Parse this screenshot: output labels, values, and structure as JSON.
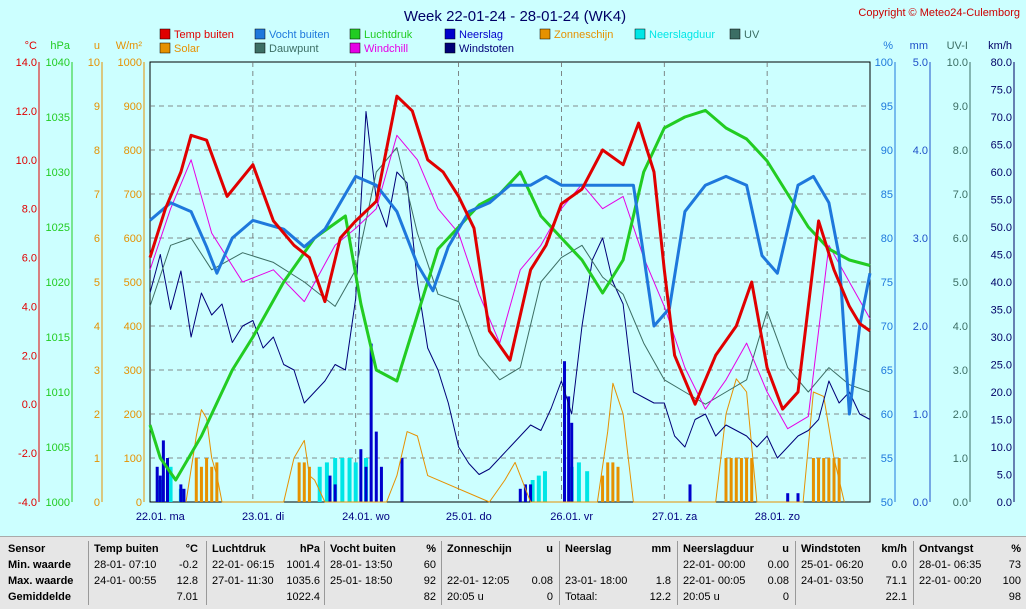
{
  "header": {
    "title": "Week 22-01-24 - 28-01-24 (WK4)",
    "copyright": "Copyright © Meteo24-Culemborg"
  },
  "legend": [
    {
      "label": "Temp buiten",
      "color": "#e00000"
    },
    {
      "label": "Vocht buiten",
      "color": "#1e78dc"
    },
    {
      "label": "Luchtdruk",
      "color": "#22cc22"
    },
    {
      "label": "Neerslag",
      "color": "#0000cc"
    },
    {
      "label": "Zonneschijn",
      "color": "#e69100"
    },
    {
      "label": "Neerslagduur",
      "color": "#00e6e6"
    },
    {
      "label": "UV",
      "color": "#3c6e64"
    },
    {
      "label": "Solar",
      "color": "#e69100"
    },
    {
      "label": "Dauwpunt",
      "color": "#3c6e64"
    },
    {
      "label": "Windchill",
      "color": "#e600e6"
    },
    {
      "label": "Windstoten",
      "color": "#000078"
    }
  ],
  "chart_data": {
    "type": "line",
    "x_labels": [
      "22.01. ma",
      "23.01. di",
      "24.01. wo",
      "25.01. do",
      "26.01. vr",
      "27.01. za",
      "28.01. zo"
    ],
    "axes": {
      "temp": {
        "unit": "°C",
        "range": [
          -4,
          14
        ],
        "ticks": [
          "14.0",
          "12.0",
          "10.0",
          "8.0",
          "6.0",
          "4.0",
          "2.0",
          "0.0",
          "-2.0",
          "-4.0"
        ]
      },
      "pressure": {
        "unit": "hPa",
        "range": [
          1000,
          1040
        ],
        "ticks": [
          "1040",
          "1035",
          "1030",
          "1025",
          "1020",
          "1015",
          "1010",
          "1005",
          "1000"
        ]
      },
      "sun_hours": {
        "unit": "u",
        "range": [
          0,
          10
        ],
        "ticks": [
          "10",
          "9",
          "8",
          "7",
          "6",
          "5",
          "4",
          "3",
          "2",
          "1",
          "0"
        ]
      },
      "solar": {
        "unit": "W/m²",
        "range": [
          0,
          1000
        ],
        "ticks": [
          "1000",
          "900",
          "800",
          "700",
          "600",
          "500",
          "400",
          "300",
          "200",
          "100",
          "0"
        ]
      },
      "humidity": {
        "unit": "%",
        "range": [
          50,
          100
        ],
        "ticks": [
          "100",
          "95",
          "90",
          "85",
          "80",
          "75",
          "70",
          "65",
          "60",
          "55",
          "50"
        ]
      },
      "rain": {
        "unit": "mm",
        "range": [
          0,
          5
        ],
        "ticks": [
          "5.0",
          "4.0",
          "3.0",
          "2.0",
          "1.0",
          "0.0"
        ]
      },
      "uv": {
        "unit": "UV-I",
        "range": [
          0,
          10
        ],
        "ticks": [
          "10.0",
          "9.0",
          "8.0",
          "7.0",
          "6.0",
          "5.0",
          "4.0",
          "3.0",
          "2.0",
          "1.0",
          "0.0"
        ]
      },
      "wind": {
        "unit": "km/h",
        "range": [
          0,
          80
        ],
        "ticks": [
          "80.0",
          "75.0",
          "70.0",
          "65.0",
          "60.0",
          "55.0",
          "50.0",
          "45.0",
          "40.0",
          "35.0",
          "30.0",
          "25.0",
          "20.0",
          "15.0",
          "10.0",
          "5.0",
          "0.0"
        ]
      }
    },
    "series": [
      {
        "name": "Temp buiten",
        "axis": "temp",
        "x": [
          0,
          0.15,
          0.3,
          0.4,
          0.55,
          0.75,
          1.0,
          1.2,
          1.4,
          1.55,
          1.7,
          1.85,
          2.0,
          2.2,
          2.4,
          2.55,
          2.7,
          2.85,
          3.0,
          3.15,
          3.3,
          3.5,
          3.7,
          3.85,
          4.0,
          4.2,
          4.4,
          4.6,
          4.75,
          4.9,
          5.0,
          5.1,
          5.3,
          5.5,
          5.7,
          5.85,
          6.0,
          6.15,
          6.3,
          6.5,
          6.65,
          6.8,
          6.9,
          7.0
        ],
        "y": [
          6.0,
          8.0,
          9.5,
          11.0,
          10.8,
          8.5,
          9.8,
          7.5,
          6.5,
          6.0,
          4.2,
          6.8,
          7.5,
          8.3,
          12.6,
          12.0,
          10.0,
          9.5,
          8.5,
          7.2,
          3.0,
          1.8,
          5.5,
          6.5,
          8.2,
          8.8,
          10.4,
          9.8,
          11.5,
          9.5,
          5.5,
          2.0,
          0.0,
          2.0,
          3.2,
          5.0,
          1.5,
          -0.2,
          0.5,
          7.5,
          5.5,
          4.0,
          3.3,
          3.0
        ]
      },
      {
        "name": "Dauwpunt",
        "axis": "temp",
        "x": [
          0,
          0.2,
          0.4,
          0.6,
          0.9,
          1.2,
          1.5,
          1.8,
          2.0,
          2.2,
          2.4,
          2.6,
          2.8,
          3.0,
          3.2,
          3.4,
          3.6,
          3.8,
          4.0,
          4.2,
          4.4,
          4.6,
          4.8,
          5.0,
          5.2,
          5.4,
          5.6,
          5.8,
          6.0,
          6.2,
          6.4,
          6.6,
          6.8,
          7.0
        ],
        "y": [
          4.0,
          6.5,
          6.8,
          5.5,
          6.2,
          5.8,
          5.0,
          4.0,
          5.5,
          9.5,
          10.5,
          7.0,
          4.5,
          4.2,
          2.0,
          1.0,
          1.5,
          5.0,
          6.0,
          6.5,
          5.2,
          4.5,
          2.5,
          1.0,
          0.5,
          0.0,
          0.5,
          1.0,
          3.8,
          1.5,
          0.5,
          1.5,
          0.8,
          0.5
        ]
      },
      {
        "name": "Windchill",
        "axis": "temp",
        "x": [
          0,
          0.2,
          0.4,
          0.6,
          0.9,
          1.2,
          1.5,
          1.8,
          2.0,
          2.2,
          2.4,
          2.6,
          2.8,
          3.0,
          3.2,
          3.4,
          3.6,
          3.8,
          4.0,
          4.2,
          4.4,
          4.6,
          4.8,
          5.0,
          5.2,
          5.4,
          5.6,
          5.8,
          6.0,
          6.2,
          6.4,
          6.6,
          6.8,
          7.0
        ],
        "y": [
          5.5,
          8.0,
          10.0,
          7.0,
          5.0,
          5.5,
          4.2,
          6.5,
          7.2,
          8.0,
          11.0,
          10.0,
          8.0,
          7.0,
          4.5,
          2.5,
          5.5,
          6.5,
          8.0,
          9.0,
          8.0,
          8.5,
          6.0,
          4.0,
          1.5,
          -0.2,
          1.0,
          2.5,
          0.5,
          -1.0,
          -0.5,
          6.5,
          5.0,
          3.5
        ]
      },
      {
        "name": "Luchtdruk",
        "axis": "pressure",
        "x": [
          0,
          0.1,
          0.25,
          0.5,
          0.8,
          1.0,
          1.3,
          1.6,
          1.9,
          2.05,
          2.2,
          2.4,
          2.6,
          2.8,
          3.0,
          3.2,
          3.4,
          3.6,
          3.8,
          4.0,
          4.2,
          4.4,
          4.6,
          4.8,
          5.0,
          5.2,
          5.4,
          5.6,
          5.8,
          6.0,
          6.2,
          6.4,
          6.6,
          6.8,
          7.0
        ],
        "y": [
          1007,
          1004,
          1002,
          1006,
          1012,
          1015,
          1020,
          1024,
          1026,
          1018,
          1012,
          1011,
          1017,
          1023,
          1025,
          1027,
          1028,
          1030,
          1026,
          1024,
          1022,
          1019,
          1022,
          1030,
          1034,
          1035,
          1035.6,
          1034,
          1033,
          1031,
          1028,
          1025,
          1023,
          1022,
          1021.5
        ]
      },
      {
        "name": "Vocht buiten",
        "axis": "humidity",
        "x": [
          0,
          0.2,
          0.4,
          0.55,
          0.65,
          0.8,
          1.0,
          1.3,
          1.5,
          1.7,
          1.85,
          2.0,
          2.2,
          2.4,
          2.6,
          2.75,
          2.9,
          3.1,
          3.3,
          3.5,
          3.7,
          3.85,
          4.0,
          4.2,
          4.4,
          4.7,
          4.9,
          5.05,
          5.2,
          5.4,
          5.6,
          5.8,
          5.95,
          6.1,
          6.3,
          6.45,
          6.6,
          6.7,
          6.8,
          6.9,
          7.0
        ],
        "y": [
          82,
          84,
          83,
          79,
          76,
          80,
          82,
          81,
          79,
          81,
          84,
          87,
          86,
          83,
          77,
          74,
          79,
          83,
          84,
          86,
          86,
          87,
          86,
          86,
          86,
          86,
          70,
          72,
          83,
          86,
          87,
          86,
          78,
          76,
          86,
          87,
          84,
          78,
          60,
          70,
          76
        ]
      },
      {
        "name": "Windstoten",
        "axis": "wind",
        "x": [
          0,
          0.1,
          0.2,
          0.3,
          0.4,
          0.5,
          0.6,
          0.7,
          0.8,
          0.9,
          1.0,
          1.1,
          1.2,
          1.3,
          1.4,
          1.5,
          1.6,
          1.7,
          1.8,
          1.9,
          2.0,
          2.1,
          2.2,
          2.3,
          2.4,
          2.5,
          2.6,
          2.7,
          2.8,
          2.9,
          3.0,
          3.1,
          3.2,
          3.3,
          3.4,
          3.5,
          3.6,
          3.7,
          3.8,
          3.9,
          4.0,
          4.1,
          4.2,
          4.3,
          4.4,
          4.5,
          4.6,
          4.7,
          4.8,
          4.9,
          5.0,
          5.1,
          5.2,
          5.3,
          5.4,
          5.5,
          5.6,
          5.7,
          5.8,
          5.9,
          6.0,
          6.1,
          6.2,
          6.3,
          6.4,
          6.5,
          6.6,
          6.7,
          6.8,
          6.9,
          7.0
        ],
        "y": [
          38,
          45,
          35,
          42,
          30,
          38,
          34,
          36,
          29,
          32,
          33,
          28,
          30,
          25,
          24,
          18,
          20,
          22,
          25,
          24,
          37,
          71,
          55,
          50,
          60,
          58,
          40,
          28,
          24,
          18,
          10,
          7,
          5,
          6,
          8,
          10,
          12,
          14,
          13,
          17,
          22,
          16,
          32,
          44,
          48,
          40,
          36,
          20,
          19,
          18,
          18,
          12,
          10,
          15,
          16,
          12,
          14,
          13,
          12,
          10,
          12,
          8,
          10,
          12,
          13,
          15,
          22,
          18,
          20,
          16,
          15
        ]
      },
      {
        "name": "Neerslag",
        "axis": "rain",
        "type": "bar",
        "x": [
          0.07,
          0.1,
          0.13,
          0.17,
          0.3,
          0.33,
          1.75,
          1.8,
          2.05,
          2.1,
          2.15,
          2.2,
          2.25,
          2.45,
          3.6,
          3.65,
          3.7,
          4.03,
          4.07,
          4.1,
          5.25,
          6.2,
          6.3
        ],
        "y": [
          0.4,
          0.3,
          0.7,
          0.5,
          0.2,
          0.15,
          0.3,
          0.2,
          0.6,
          0.4,
          1.8,
          0.8,
          0.4,
          0.5,
          0.15,
          0.2,
          0.2,
          1.6,
          1.2,
          0.9,
          0.2,
          0.1,
          0.1
        ]
      },
      {
        "name": "Neerslagduur",
        "axis": "sun_hours",
        "type": "bar",
        "x": [
          0.1,
          0.2,
          0.3,
          1.65,
          1.72,
          1.8,
          1.87,
          1.94,
          2.0,
          2.1,
          3.72,
          3.78,
          3.84,
          4.1,
          4.17,
          4.25
        ],
        "y": [
          0.5,
          0.8,
          0.3,
          0.8,
          0.9,
          1.0,
          1.0,
          1.0,
          0.9,
          1.0,
          0.5,
          0.6,
          0.7,
          0.8,
          0.9,
          0.7
        ]
      },
      {
        "name": "Zonneschijn",
        "axis": "sun_hours",
        "type": "bar",
        "x": [
          0.45,
          0.5,
          0.55,
          0.6,
          0.65,
          1.45,
          1.5,
          1.55,
          4.4,
          4.45,
          4.5,
          4.55,
          5.6,
          5.65,
          5.7,
          5.75,
          5.8,
          5.85,
          6.45,
          6.5,
          6.55,
          6.6,
          6.65,
          6.7
        ],
        "y": [
          1.0,
          0.8,
          1.0,
          0.8,
          0.9,
          0.9,
          0.9,
          0.8,
          0.6,
          0.9,
          0.9,
          0.8,
          1.0,
          1.0,
          1.0,
          1.0,
          1.0,
          1.0,
          1.0,
          1.0,
          1.0,
          1.0,
          1.0,
          1.0
        ]
      },
      {
        "name": "Solar",
        "axis": "solar",
        "x": [
          0.35,
          0.45,
          0.5,
          0.55,
          0.6,
          0.65,
          0.7,
          1.3,
          1.4,
          1.5,
          1.55,
          1.6,
          1.7,
          2.3,
          2.4,
          2.5,
          2.6,
          2.7,
          3.3,
          3.45,
          3.55,
          3.7,
          4.35,
          4.45,
          4.5,
          4.6,
          4.7,
          5.5,
          5.6,
          5.7,
          5.8,
          5.9,
          6.35,
          6.45,
          6.55,
          6.65,
          6.75
        ],
        "y": [
          0,
          150,
          210,
          190,
          100,
          60,
          0,
          0,
          100,
          140,
          60,
          50,
          0,
          0,
          60,
          160,
          150,
          60,
          0,
          50,
          90,
          0,
          0,
          160,
          270,
          200,
          0,
          0,
          200,
          280,
          250,
          0,
          0,
          250,
          240,
          100,
          0
        ]
      }
    ]
  },
  "stats": {
    "sensor": {
      "header": "Sensor",
      "rows": [
        "Min. waarde",
        "Max. waarde",
        "Gemiddelde"
      ]
    },
    "columns": [
      {
        "title": "Temp buiten",
        "unit": "°C",
        "rows": [
          {
            "t": "28-01-  07:10",
            "v": "-0.2"
          },
          {
            "t": "24-01-  00:55",
            "v": "12.8"
          },
          {
            "t": "",
            "v": "7.01"
          }
        ]
      },
      {
        "title": "Luchtdruk",
        "unit": "hPa",
        "rows": [
          {
            "t": "22-01-  06:15",
            "v": "1001.4"
          },
          {
            "t": "27-01-  11:30",
            "v": "1035.6"
          },
          {
            "t": "",
            "v": "1022.4"
          }
        ]
      },
      {
        "title": "Vocht buiten",
        "unit": "%",
        "rows": [
          {
            "t": "28-01-  13:50",
            "v": "60"
          },
          {
            "t": "25-01-  18:50",
            "v": "92"
          },
          {
            "t": "",
            "v": "82"
          }
        ]
      },
      {
        "title": "Zonneschijn",
        "unit": "u",
        "rows": [
          {
            "t": "",
            "v": ""
          },
          {
            "t": "22-01-  12:05",
            "v": "0.08"
          },
          {
            "t": "20:05 u",
            "v": "0"
          }
        ]
      },
      {
        "title": "Neerslag",
        "unit": "mm",
        "rows": [
          {
            "t": "",
            "v": ""
          },
          {
            "t": "23-01-  18:00",
            "v": "1.8"
          },
          {
            "t": "Totaal:",
            "v": "12.2"
          }
        ]
      },
      {
        "title": "Neerslagduur",
        "unit": "u",
        "rows": [
          {
            "t": "22-01-  00:00",
            "v": "0.00"
          },
          {
            "t": "22-01-  00:05",
            "v": "0.08"
          },
          {
            "t": "20:05 u",
            "v": "0"
          }
        ]
      },
      {
        "title": "Windstoten",
        "unit": "km/h",
        "rows": [
          {
            "t": "25-01-  06:20",
            "v": "0.0"
          },
          {
            "t": "24-01-  03:50",
            "v": "71.1"
          },
          {
            "t": "",
            "v": "22.1"
          }
        ]
      },
      {
        "title": "Ontvangst",
        "unit": "%",
        "rows": [
          {
            "t": "28-01-  06:35",
            "v": "73"
          },
          {
            "t": "22-01-  00:20",
            "v": "100"
          },
          {
            "t": "",
            "v": "98"
          }
        ]
      }
    ]
  }
}
